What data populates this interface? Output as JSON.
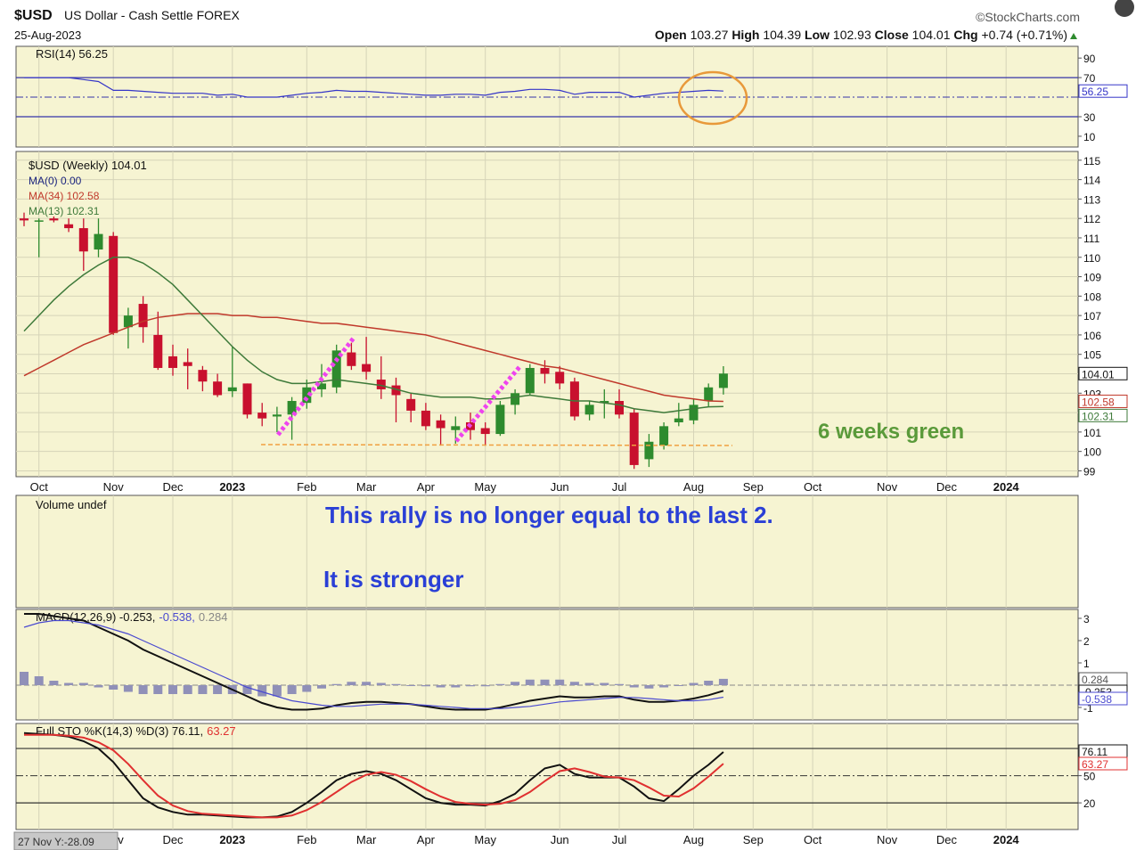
{
  "header": {
    "symbol": "$USD",
    "name": "US Dollar - Cash Settle FOREX",
    "date": "25-Aug-2023",
    "source": "©StockCharts.com",
    "open_label": "Open",
    "high_label": "High",
    "low_label": "Low",
    "close_label": "Close",
    "chg_label": "Chg",
    "chg": "+0.74 (+0.71%)",
    "cursor_label": "27 Nov Y:-28.09"
  },
  "chart_data": [
    {
      "type": "line",
      "title": "RSI(14) 56.25",
      "ylim": [
        -1,
        102
      ],
      "yticks": [
        90,
        70,
        30,
        10
      ],
      "reference_lines": [
        70,
        30
      ],
      "midline": 50,
      "series": [
        {
          "color": "#3535c8",
          "values": [
            70,
            70,
            70,
            70,
            68,
            66,
            57,
            57,
            56,
            55,
            54,
            54,
            54,
            52,
            53,
            50,
            50,
            50,
            52,
            54,
            55,
            57,
            56,
            56,
            55,
            54,
            53,
            52,
            52,
            53,
            53,
            52,
            55,
            56,
            58,
            58,
            57,
            53,
            55,
            55,
            55,
            50,
            52,
            54,
            55,
            56,
            57,
            56.25,
            null,
            null,
            null,
            null,
            null,
            null,
            null,
            null,
            null,
            null,
            null,
            null,
            null,
            null,
            null,
            null,
            null,
            null,
            null,
            null,
            null,
            null,
            null
          ]
        }
      ]
    },
    {
      "type": "candlestick",
      "title": "$USD (Weekly) 104.01",
      "ylim": [
        98.7,
        115.45
      ],
      "yticks": [
        99,
        100,
        101,
        102,
        103,
        104,
        105,
        106,
        107,
        108,
        109,
        110,
        111,
        112,
        113,
        114,
        115
      ],
      "grid": true,
      "up_color": "#2e8b2e",
      "down_color": "#c8102e",
      "categories": [
        null,
        "Oct",
        null,
        null,
        null,
        null,
        "Nov",
        null,
        null,
        null,
        "Dec",
        null,
        null,
        null,
        "2023",
        null,
        null,
        null,
        null,
        "Feb",
        null,
        null,
        null,
        "Mar",
        null,
        null,
        null,
        "Apr",
        null,
        null,
        null,
        "May",
        null,
        null,
        null,
        null,
        "Jun",
        null,
        null,
        null,
        "Jul",
        null,
        null,
        null,
        null,
        "Aug",
        null,
        null,
        null,
        "Sep",
        null,
        null,
        null,
        "Oct",
        null,
        null,
        null,
        null,
        "Nov",
        null,
        null,
        null,
        "Dec",
        null,
        null,
        null,
        "2024",
        null,
        null,
        null,
        null
      ],
      "open": [
        112,
        111.9,
        112,
        111.7,
        111.5,
        110.4,
        111.1,
        106.4,
        107.6,
        106,
        104.9,
        104.6,
        104.2,
        103.6,
        103.1,
        103.5,
        102,
        101.8,
        101.9,
        102.5,
        103.2,
        103.3,
        105.1,
        104.5,
        103.7,
        103.4,
        102.7,
        102.1,
        101.6,
        101.1,
        101.5,
        101.2,
        100.9,
        102.4,
        103,
        104.3,
        104.1,
        103.6,
        101.9,
        102.5,
        102.6,
        102,
        99.6,
        100.3,
        101.5,
        101.6,
        102.6,
        103.27,
        null,
        null,
        null,
        null,
        null,
        null,
        null,
        null,
        null,
        null,
        null,
        null,
        null,
        null,
        null,
        null,
        null,
        null,
        null,
        null,
        null,
        null,
        null
      ],
      "high": [
        112.3,
        112,
        112.1,
        112,
        112,
        112,
        111.3,
        107.4,
        108,
        107.2,
        105.5,
        105.3,
        104.4,
        104,
        105.4,
        103.5,
        102.5,
        102.3,
        102.8,
        103.7,
        104.5,
        105.5,
        105.6,
        105.9,
        104.9,
        103.8,
        103,
        102.5,
        101.9,
        101.8,
        102,
        101.5,
        102.6,
        103.2,
        104.5,
        104.7,
        104.4,
        103.8,
        102.6,
        103.2,
        103.2,
        102.2,
        100.9,
        101.5,
        102.5,
        102.7,
        103.5,
        104.39,
        null,
        null,
        null,
        null,
        null,
        null,
        null,
        null,
        null,
        null,
        null,
        null,
        null,
        null,
        null,
        null,
        null,
        null,
        null,
        null,
        null,
        null,
        null
      ],
      "low": [
        111.6,
        110,
        111.8,
        111.3,
        109.3,
        110,
        106,
        105.3,
        105.6,
        104.2,
        103.9,
        103.2,
        103.1,
        102.8,
        102.8,
        101.7,
        101.3,
        101,
        100.6,
        102.2,
        102.8,
        103,
        104.2,
        103.7,
        102.7,
        101.5,
        101.5,
        101.1,
        100.3,
        100.4,
        100.6,
        100.3,
        100.8,
        101.9,
        102.9,
        103.5,
        103.2,
        101.6,
        101.6,
        101.7,
        101.7,
        99.1,
        99.2,
        100.1,
        101.3,
        101.4,
        102.3,
        102.93,
        null,
        null,
        null,
        null,
        null,
        null,
        null,
        null,
        null,
        null,
        null,
        null,
        null,
        null,
        null,
        null,
        null,
        null,
        null,
        null,
        null,
        null,
        null
      ],
      "close": [
        111.9,
        111.9,
        111.9,
        111.5,
        110.3,
        111.2,
        106.1,
        107,
        106.4,
        104.3,
        104.3,
        104.4,
        103.6,
        102.9,
        103.3,
        101.9,
        101.7,
        101.9,
        102.6,
        103.3,
        103.5,
        105.2,
        104.4,
        104.1,
        103.2,
        102.9,
        102.1,
        101.3,
        101.2,
        101.3,
        101.1,
        100.9,
        102.4,
        103,
        104.3,
        104,
        103.5,
        101.8,
        102.4,
        102.6,
        101.9,
        99.3,
        100.5,
        101.3,
        101.7,
        102.4,
        103.3,
        104.01,
        null,
        null,
        null,
        null,
        null,
        null,
        null,
        null,
        null,
        null,
        null,
        null,
        null,
        null,
        null,
        null,
        null,
        null,
        null,
        null,
        null,
        null,
        null
      ],
      "extra_legend": {
        "name": "MA(0) 0.00",
        "color": "#1a237e"
      },
      "series": [
        {
          "name": "MA(34) 102.58",
          "color": "#c0392b",
          "values": [
            103.9,
            104.3,
            104.7,
            105.1,
            105.5,
            105.8,
            106.1,
            106.4,
            106.7,
            106.9,
            107,
            107.1,
            107.1,
            107.1,
            107,
            107,
            106.9,
            106.9,
            106.8,
            106.7,
            106.6,
            106.6,
            106.5,
            106.4,
            106.3,
            106.2,
            106.1,
            106,
            105.8,
            105.6,
            105.4,
            105.2,
            105,
            104.8,
            104.6,
            104.4,
            104.3,
            104.1,
            103.9,
            103.7,
            103.5,
            103.3,
            103.1,
            102.9,
            102.8,
            102.7,
            102.6,
            102.58,
            null,
            null,
            null,
            null,
            null,
            null,
            null,
            null,
            null,
            null,
            null,
            null,
            null,
            null,
            null,
            null,
            null,
            null,
            null,
            null,
            null,
            null,
            null
          ]
        },
        {
          "name": "MA(13) 102.31",
          "color": "#3e7a3a",
          "values": [
            106.2,
            107,
            107.8,
            108.5,
            109.1,
            109.6,
            110,
            110,
            109.7,
            109.2,
            108.6,
            107.8,
            107,
            106.2,
            105.4,
            104.7,
            104.1,
            103.7,
            103.5,
            103.5,
            103.6,
            103.7,
            103.6,
            103.5,
            103.4,
            103.2,
            103,
            102.9,
            102.8,
            102.8,
            102.8,
            102.7,
            102.7,
            102.8,
            102.9,
            102.8,
            102.7,
            102.6,
            102.6,
            102.5,
            102.4,
            102.2,
            102.1,
            102,
            102.1,
            102.2,
            102.3,
            102.31,
            null,
            null,
            null,
            null,
            null,
            null,
            null,
            null,
            null,
            null,
            null,
            null,
            null,
            null,
            null,
            null,
            null,
            null,
            null,
            null,
            null,
            null,
            null
          ]
        }
      ],
      "annotations": [
        "6 weeks green"
      ]
    },
    {
      "type": "volume",
      "title": "Volume undef",
      "annotations": [
        "This rally is no longer equal to the last 2.",
        "It is stronger"
      ]
    },
    {
      "type": "macd",
      "title_parts": [
        "MACD(12,26,9) -0.253,",
        "-0.538,",
        "0.284"
      ],
      "ylim": [
        -1.56,
        3.4
      ],
      "yticks": [
        3,
        2,
        1,
        -1
      ],
      "midline": 0,
      "series": [
        {
          "color": "#111111",
          "values": [
            3.2,
            3.2,
            3.1,
            3.0,
            2.9,
            2.6,
            2.3,
            2.0,
            1.6,
            1.3,
            1.0,
            0.7,
            0.4,
            0.1,
            -0.2,
            -0.5,
            -0.8,
            -1.0,
            -1.1,
            -1.1,
            -1.05,
            -0.9,
            -0.8,
            -0.75,
            -0.75,
            -0.8,
            -0.85,
            -0.95,
            -1.05,
            -1.1,
            -1.1,
            -1.1,
            -1.0,
            -0.85,
            -0.7,
            -0.6,
            -0.5,
            -0.55,
            -0.55,
            -0.5,
            -0.5,
            -0.65,
            -0.75,
            -0.75,
            -0.7,
            -0.6,
            -0.45,
            -0.253,
            null,
            null,
            null,
            null,
            null,
            null,
            null,
            null,
            null,
            null,
            null,
            null,
            null,
            null,
            null,
            null,
            null,
            null,
            null,
            null,
            null,
            null,
            null
          ]
        },
        {
          "color": "#4a4ad0",
          "values": [
            2.6,
            2.8,
            2.9,
            2.9,
            2.8,
            2.7,
            2.5,
            2.3,
            2.0,
            1.7,
            1.4,
            1.1,
            0.8,
            0.5,
            0.2,
            -0.1,
            -0.3,
            -0.5,
            -0.7,
            -0.8,
            -0.9,
            -0.95,
            -0.95,
            -0.9,
            -0.85,
            -0.85,
            -0.85,
            -0.9,
            -0.95,
            -1.0,
            -1.05,
            -1.05,
            -1.05,
            -1.0,
            -0.95,
            -0.85,
            -0.75,
            -0.7,
            -0.65,
            -0.6,
            -0.55,
            -0.55,
            -0.6,
            -0.65,
            -0.7,
            -0.7,
            -0.65,
            -0.538,
            null,
            null,
            null,
            null,
            null,
            null,
            null,
            null,
            null,
            null,
            null,
            null,
            null,
            null,
            null,
            null,
            null,
            null,
            null,
            null,
            null,
            null,
            null
          ]
        }
      ],
      "histogram": {
        "color": "#9090b8",
        "values": [
          0.6,
          0.4,
          0.2,
          0.1,
          0.1,
          -0.1,
          -0.2,
          -0.3,
          -0.4,
          -0.4,
          -0.4,
          -0.4,
          -0.4,
          -0.4,
          -0.4,
          -0.4,
          -0.5,
          -0.5,
          -0.4,
          -0.3,
          -0.15,
          0.05,
          0.15,
          0.15,
          0.1,
          0.05,
          0,
          -0.05,
          -0.1,
          -0.1,
          -0.05,
          -0.05,
          0.05,
          0.15,
          0.25,
          0.25,
          0.25,
          0.15,
          0.1,
          0.1,
          0.05,
          -0.1,
          -0.15,
          -0.1,
          0,
          0.1,
          0.2,
          0.284,
          null,
          null,
          null,
          null,
          null,
          null,
          null,
          null,
          null,
          null,
          null,
          null,
          null,
          null,
          null,
          null,
          null,
          null,
          null,
          null,
          null,
          null,
          null
        ]
      }
    },
    {
      "type": "line",
      "title_parts": [
        "Full STO %K(14,3) %D(3) 76.11,",
        "63.27"
      ],
      "ylim": [
        -9.4,
        107.6
      ],
      "yticks": [
        80,
        50,
        20
      ],
      "reference_lines": [
        80,
        20
      ],
      "midline": 50,
      "series": [
        {
          "color": "#111111",
          "values": [
            97,
            96,
            95,
            93,
            88,
            80,
            65,
            45,
            25,
            15,
            10,
            7,
            7,
            6,
            5,
            4,
            4,
            5,
            10,
            20,
            32,
            45,
            52,
            55,
            52,
            45,
            35,
            25,
            20,
            18,
            18,
            17,
            22,
            30,
            45,
            58,
            62,
            52,
            48,
            48,
            48,
            38,
            25,
            22,
            35,
            50,
            62,
            76.11,
            null,
            null,
            null,
            null,
            null,
            null,
            null,
            null,
            null,
            null,
            null,
            null,
            null,
            null,
            null,
            null,
            null,
            null,
            null,
            null,
            null,
            null,
            null
          ]
        },
        {
          "color": "#e03030",
          "values": [
            95,
            95,
            95,
            94,
            92,
            87,
            78,
            63,
            45,
            28,
            17,
            11,
            8,
            7,
            6,
            5,
            4,
            4,
            6,
            12,
            21,
            32,
            43,
            51,
            54,
            51,
            44,
            35,
            27,
            21,
            19,
            18,
            19,
            23,
            32,
            44,
            55,
            58,
            54,
            49,
            48,
            45,
            37,
            28,
            27,
            36,
            49,
            63.27,
            null,
            null,
            null,
            null,
            null,
            null,
            null,
            null,
            null,
            null,
            null,
            null,
            null,
            null,
            null,
            null,
            null,
            null,
            null,
            null,
            null,
            null,
            null
          ]
        }
      ]
    }
  ]
}
